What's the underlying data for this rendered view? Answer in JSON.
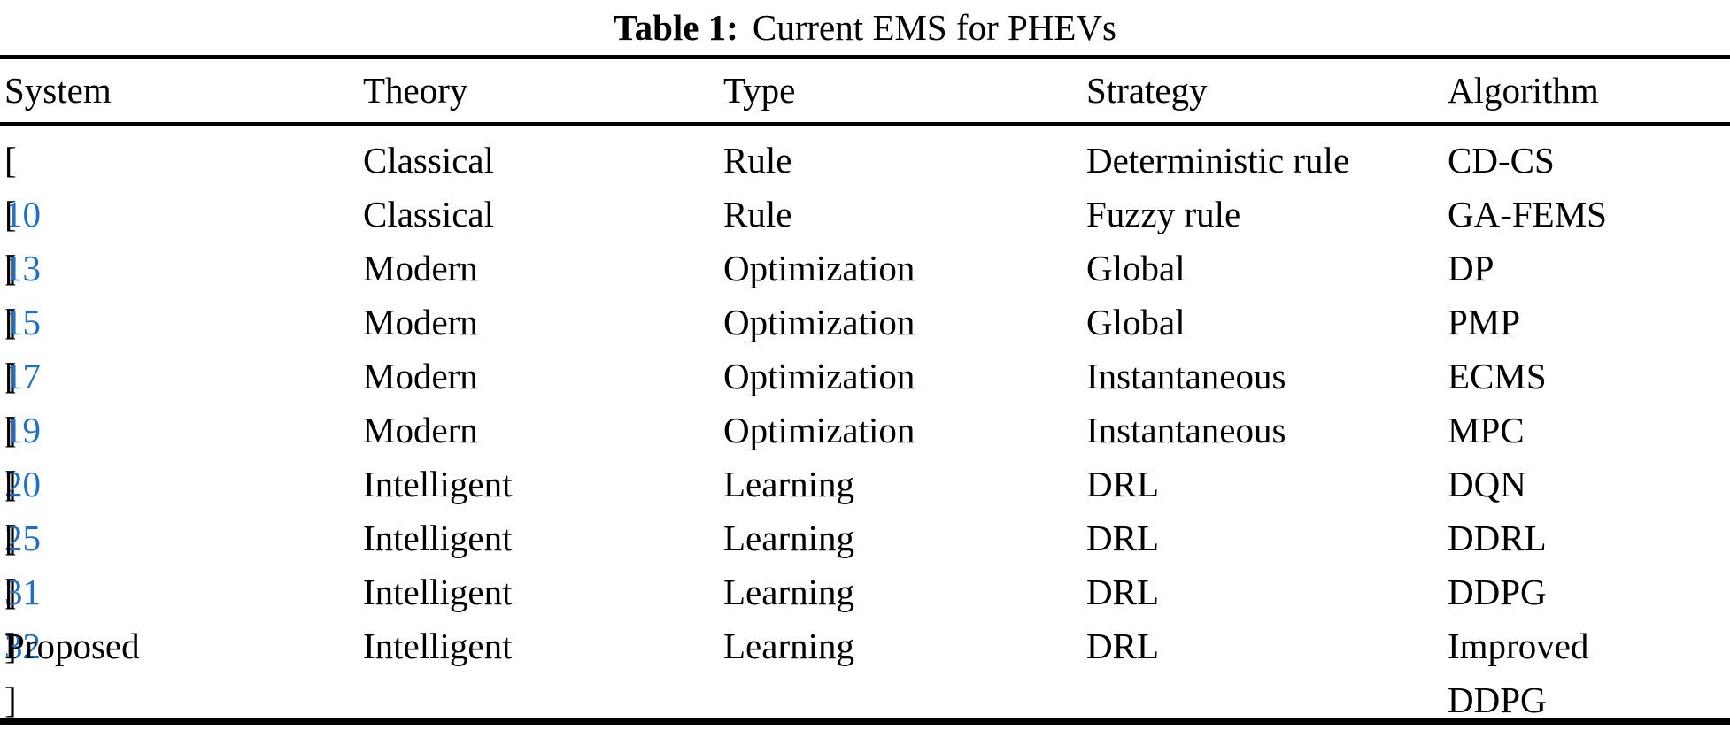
{
  "title": {
    "label": "Table 1:",
    "text": "Current EMS for PHEVs"
  },
  "columns": [
    "System",
    "Theory",
    "Type",
    "Strategy",
    "Algorithm"
  ],
  "rows": [
    {
      "system": "[10]",
      "cite": "10",
      "theory": "Classical",
      "type": "Rule",
      "strategy": "Deterministic rule",
      "algorithm": "CD-CS"
    },
    {
      "system": "[13]",
      "cite": "13",
      "theory": "Classical",
      "type": "Rule",
      "strategy": "Fuzzy rule",
      "algorithm": "GA-FEMS"
    },
    {
      "system": "[15]",
      "cite": "15",
      "theory": "Modern",
      "type": "Optimization",
      "strategy": "Global",
      "algorithm": "DP"
    },
    {
      "system": "[17]",
      "cite": "17",
      "theory": "Modern",
      "type": "Optimization",
      "strategy": "Global",
      "algorithm": "PMP"
    },
    {
      "system": "[19]",
      "cite": "19",
      "theory": "Modern",
      "type": "Optimization",
      "strategy": "Instantaneous",
      "algorithm": "ECMS"
    },
    {
      "system": "[20]",
      "cite": "20",
      "theory": "Modern",
      "type": "Optimization",
      "strategy": "Instantaneous",
      "algorithm": "MPC"
    },
    {
      "system": "[25]",
      "cite": "25",
      "theory": "Intelligent",
      "type": "Learning",
      "strategy": "DRL",
      "algorithm": "DQN"
    },
    {
      "system": "[31]",
      "cite": "31",
      "theory": "Intelligent",
      "type": "Learning",
      "strategy": "DRL",
      "algorithm": "DDRL"
    },
    {
      "system": "[32]",
      "cite": "32",
      "theory": "Intelligent",
      "type": "Learning",
      "strategy": "DRL",
      "algorithm": "DDPG"
    },
    {
      "system": "Proposed",
      "cite": null,
      "theory": "Intelligent",
      "type": "Learning",
      "strategy": "DRL",
      "algorithm": [
        "Improved",
        "DDPG"
      ]
    }
  ],
  "colors": {
    "text": "#000000",
    "citation": "#1e70c5",
    "rule": "#000000"
  }
}
